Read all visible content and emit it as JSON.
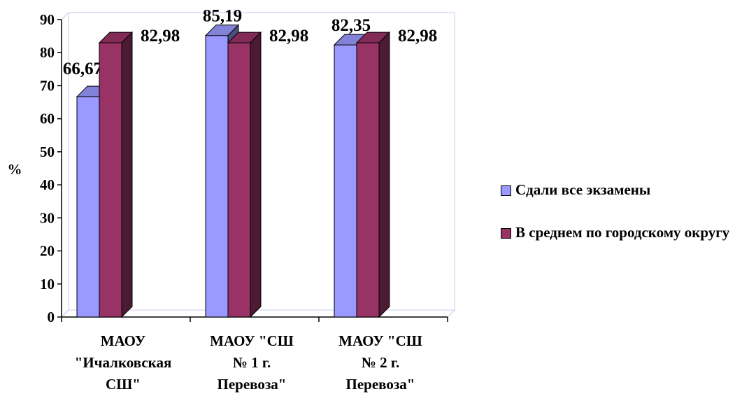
{
  "chart_data": {
    "type": "bar",
    "ylabel": "%",
    "ylim": [
      0,
      90
    ],
    "y_ticks": [
      "0",
      "10",
      "20",
      "30",
      "40",
      "50",
      "60",
      "70",
      "80",
      "90"
    ],
    "categories": [
      [
        "МАОУ",
        "\"Ичалковская",
        "СШ\""
      ],
      [
        "МАОУ \"СШ",
        "№ 1 г.",
        "Перевоза\""
      ],
      [
        "МАОУ \"СШ",
        "№ 2 г.",
        "Перевоза\""
      ]
    ],
    "series": [
      {
        "name": "Сдали все экзамены",
        "values": [
          66.67,
          85.19,
          82.35
        ],
        "labels": [
          "66,67",
          "85,19",
          "82,35"
        ],
        "color": "#9999FF"
      },
      {
        "name": "В среднем по городскому округу",
        "values": [
          82.98,
          82.98,
          82.98
        ],
        "labels": [
          "82,98",
          "82,98",
          "82,98"
        ],
        "color": "#993366"
      }
    ],
    "legend_position": "right",
    "grid": false
  }
}
